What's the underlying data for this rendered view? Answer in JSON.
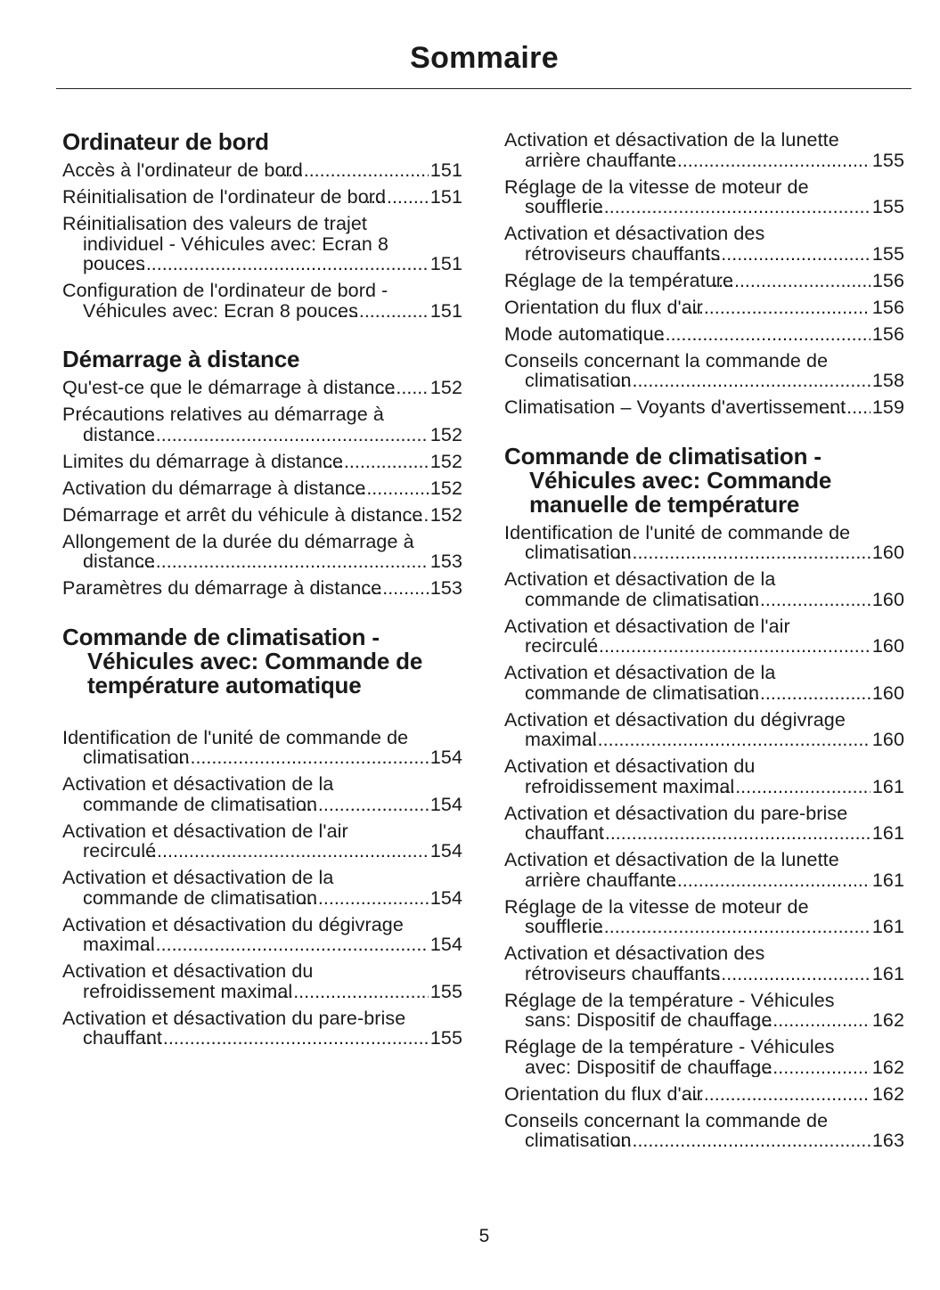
{
  "title": "Sommaire",
  "page_number": "5",
  "left": [
    {
      "heading": "Ordinateur de bord",
      "entries": [
        {
          "text": "Accès à l'ordinateur de bord",
          "page": "151"
        },
        {
          "text": "Réinitialisation de l'ordinateur de bord",
          "page": "151"
        },
        {
          "text": "Réinitialisation des valeurs de trajet individuel - Véhicules avec: Ecran 8 pouces",
          "page": "151"
        },
        {
          "text": "Configuration de l'ordinateur de bord - Véhicules avec: Ecran 8 pouces",
          "page": "151"
        }
      ]
    },
    {
      "heading": "Démarrage à distance",
      "entries": [
        {
          "text": "Qu'est-ce que le démarrage à distance",
          "page": "152"
        },
        {
          "text": "Précautions relatives au démarrage à distance",
          "page": "152"
        },
        {
          "text": "Limites du démarrage à distance",
          "page": "152"
        },
        {
          "text": "Activation du démarrage à distance",
          "page": "152"
        },
        {
          "text": "Démarrage et arrêt du véhicule à distance",
          "page": "152"
        },
        {
          "text": "Allongement de la durée du démarrage à distance",
          "page": "153"
        },
        {
          "text": "Paramètres du démarrage à distance",
          "page": "153"
        }
      ]
    },
    {
      "heading": "Commande de climatisation - Véhicules avec: Commande de température automatique",
      "gap": true,
      "entries": [
        {
          "text": "Identification de l'unité de commande de climatisation",
          "page": "154"
        },
        {
          "text": "Activation et désactivation de la commande de climatisation",
          "page": "154"
        },
        {
          "text": "Activation et désactivation de l'air recirculé",
          "page": "154"
        },
        {
          "text": "Activation et désactivation de la commande de climatisation",
          "page": "154"
        },
        {
          "text": "Activation et désactivation du dégivrage maximal",
          "page": "154"
        },
        {
          "text": "Activation et désactivation du refroidissement maximal",
          "page": "155"
        },
        {
          "text": "Activation et désactivation du pare-brise chauffant",
          "page": "155"
        }
      ]
    }
  ],
  "right_continued": [
    {
      "text": "Activation et désactivation de la lunette arrière chauffante",
      "page": "155"
    },
    {
      "text": "Réglage de la vitesse de moteur de soufflerie",
      "page": "155"
    },
    {
      "text": "Activation et désactivation des rétroviseurs chauffants",
      "page": "155"
    },
    {
      "text": "Réglage de la température",
      "page": "156"
    },
    {
      "text": "Orientation du flux d'air",
      "page": "156"
    },
    {
      "text": "Mode automatique",
      "page": "156"
    },
    {
      "text": "Conseils concernant la commande de climatisation",
      "page": "158"
    },
    {
      "text": "Climatisation – Voyants d'avertissement",
      "page": "159"
    }
  ],
  "right": [
    {
      "heading": "Commande de climatisation - Véhicules avec: Commande manuelle de température",
      "entries": [
        {
          "text": "Identification de l'unité de commande de climatisation",
          "page": "160"
        },
        {
          "text": "Activation et désactivation de la commande de climatisation",
          "page": "160"
        },
        {
          "text": "Activation et désactivation de l'air recirculé",
          "page": "160"
        },
        {
          "text": "Activation et désactivation de la commande de climatisation",
          "page": "160"
        },
        {
          "text": "Activation et désactivation du dégivrage maximal",
          "page": "160"
        },
        {
          "text": "Activation et désactivation du refroidissement maximal",
          "page": "161"
        },
        {
          "text": "Activation et désactivation du pare-brise chauffant",
          "page": "161"
        },
        {
          "text": "Activation et désactivation de la lunette arrière chauffante",
          "page": "161"
        },
        {
          "text": "Réglage de la vitesse de moteur de soufflerie",
          "page": "161"
        },
        {
          "text": "Activation et désactivation des rétroviseurs chauffants",
          "page": "161"
        },
        {
          "text": "Réglage de la température - Véhicules sans: Dispositif de chauffage",
          "page": "162"
        },
        {
          "text": "Réglage de la température - Véhicules avec: Dispositif de chauffage",
          "page": "162"
        },
        {
          "text": "Orientation du flux d'air",
          "page": "162"
        },
        {
          "text": "Conseils concernant la commande de climatisation",
          "page": "163"
        }
      ]
    }
  ]
}
